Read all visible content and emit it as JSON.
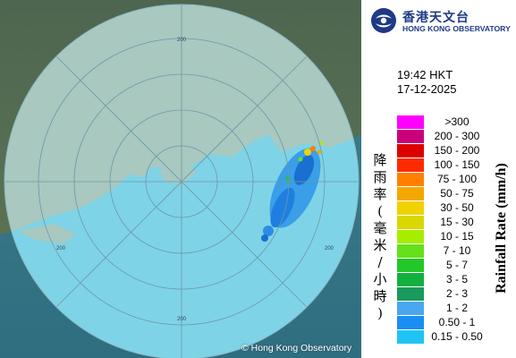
{
  "map": {
    "range_rings": [
      "200",
      "200",
      "200",
      "200"
    ],
    "copyright": "© Hong Kong Observatory"
  },
  "logo": {
    "chinese": "香港天文台",
    "english": "HONG KONG OBSERVATORY"
  },
  "timestamp": {
    "time": "19:42 HKT",
    "date": "17-12-2025"
  },
  "legend": {
    "title_chinese": [
      "降",
      "雨",
      "率",
      "(",
      "毫",
      "米",
      "/",
      "小",
      "時",
      ")"
    ],
    "title_english": "Rainfall Rate (mm/h)",
    "bins": [
      {
        "label": ">300",
        "color": "#ff00ff"
      },
      {
        "label": "200 - 300",
        "color": "#c8007a"
      },
      {
        "label": "150 - 200",
        "color": "#dd0000"
      },
      {
        "label": "100 - 150",
        "color": "#ff2a00"
      },
      {
        "label": "75 - 100",
        "color": "#ff8000"
      },
      {
        "label": "50 - 75",
        "color": "#f2a800"
      },
      {
        "label": "30 - 50",
        "color": "#f0d200"
      },
      {
        "label": "15 - 30",
        "color": "#d8d800"
      },
      {
        "label": "10 - 15",
        "color": "#a6ee00"
      },
      {
        "label": "7 - 10",
        "color": "#66e01a"
      },
      {
        "label": "5 - 7",
        "color": "#22c82a"
      },
      {
        "label": "3 - 5",
        "color": "#13b040"
      },
      {
        "label": "2 - 3",
        "color": "#1a9a5c"
      },
      {
        "label": "1 - 2",
        "color": "#4aa6ee"
      },
      {
        "label": "0.50 - 1",
        "color": "#1a8ef2"
      },
      {
        "label": "0.15 - 0.50",
        "color": "#20c4f4"
      }
    ]
  }
}
